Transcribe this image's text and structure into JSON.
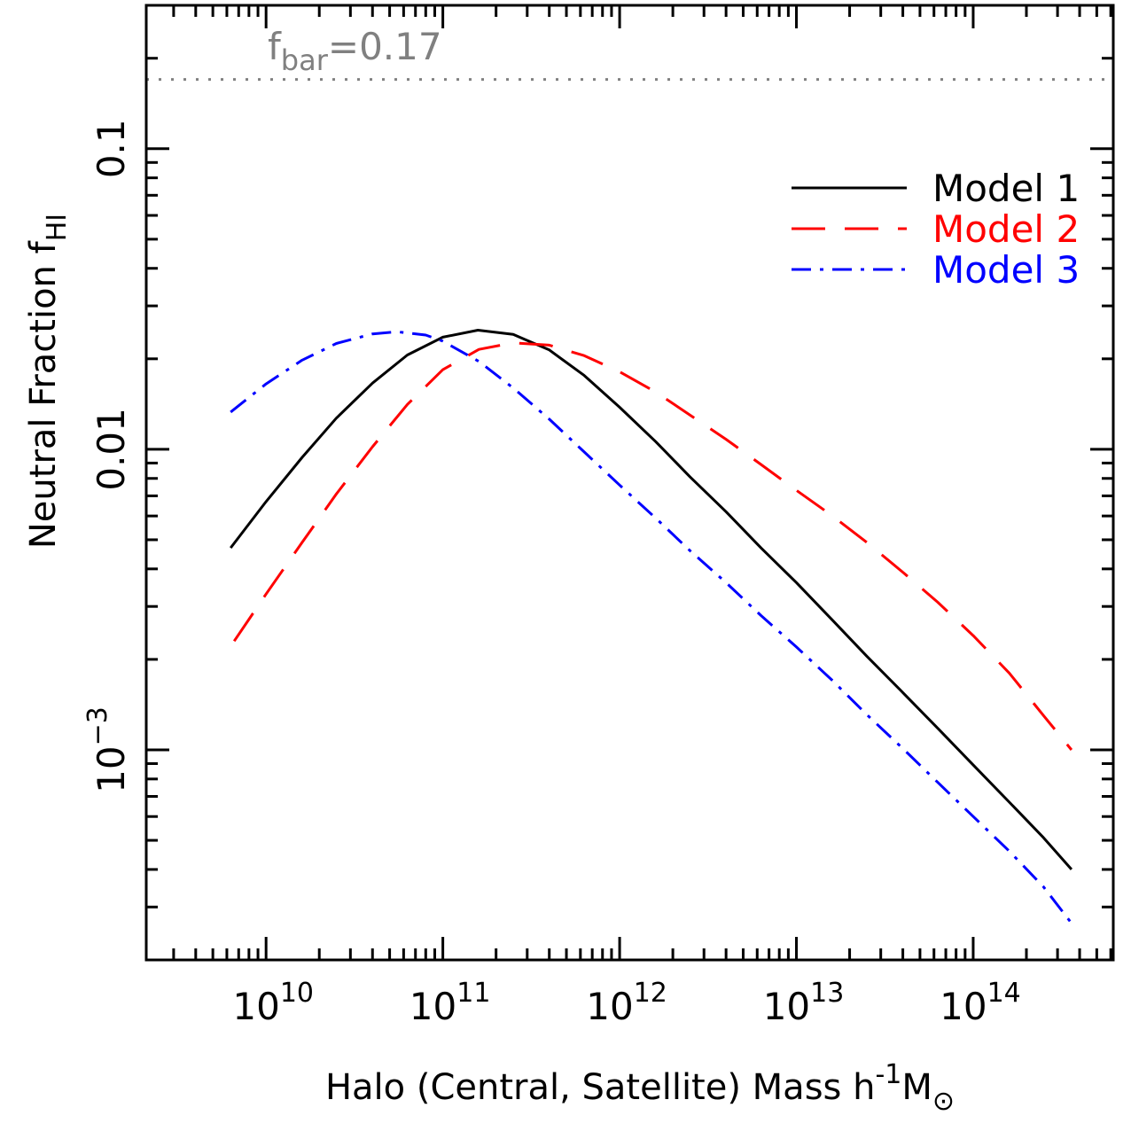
{
  "chart_data": {
    "type": "line",
    "xlabel": "Halo (Central, Satellite) Mass h",
    "xlabel_sup": "-1",
    "xlabel_unit": "M",
    "xlabel_unit_sub": "⊙",
    "ylabel": "Neutral Fraction f",
    "ylabel_sub": "HI",
    "x_scale": "log",
    "y_scale": "log",
    "xlim": [
      2100000000.0,
      620000000000000.0
    ],
    "ylim": [
      0.0002,
      0.3
    ],
    "x_ticks": [
      {
        "base": "10",
        "exp": "10",
        "value": 10000000000.0
      },
      {
        "base": "10",
        "exp": "11",
        "value": 100000000000.0
      },
      {
        "base": "10",
        "exp": "12",
        "value": 1000000000000.0
      },
      {
        "base": "10",
        "exp": "13",
        "value": 10000000000000.0
      },
      {
        "base": "10",
        "exp": "14",
        "value": 100000000000000.0
      }
    ],
    "y_ticks": [
      {
        "label": "0.1",
        "value": 0.1
      },
      {
        "label": "0.01",
        "value": 0.01
      },
      {
        "base": "10",
        "exp": "−3",
        "value": 0.001
      }
    ],
    "reference_line": {
      "value": 0.17,
      "label_main": "f",
      "label_sub": "bar",
      "label_rest": "=0.17",
      "color": "#808080"
    },
    "series": [
      {
        "name": "Model 1",
        "color": "#000000",
        "dash": "solid",
        "x": [
          6300000000.0,
          10000000000.0,
          16000000000.0,
          25000000000.0,
          40000000000.0,
          63000000000.0,
          100000000000.0,
          158000000000.0,
          250000000000.0,
          400000000000.0,
          630000000000.0,
          1000000000000.0,
          1600000000000.0,
          2500000000000.0,
          4000000000000.0,
          6300000000000.0,
          10000000000000.0,
          16000000000000.0,
          25000000000000.0,
          40000000000000.0,
          63000000000000.0,
          100000000000000.0,
          160000000000000.0,
          250000000000000.0,
          360000000000000.0
        ],
        "y": [
          0.0047,
          0.0067,
          0.0094,
          0.0127,
          0.0166,
          0.0206,
          0.0236,
          0.0249,
          0.0241,
          0.0214,
          0.0176,
          0.0138,
          0.0106,
          0.0081,
          0.0062,
          0.0047,
          0.0036,
          0.0027,
          0.00205,
          0.00155,
          0.00118,
          0.00089,
          0.00067,
          0.00051,
          0.0004
        ]
      },
      {
        "name": "Model 2",
        "color": "#ff0000",
        "dash": "long-dash",
        "x": [
          6600000000.0,
          10000000000.0,
          16000000000.0,
          25000000000.0,
          40000000000.0,
          63000000000.0,
          100000000000.0,
          160000000000.0,
          250000000000.0,
          400000000000.0,
          630000000000.0,
          1000000000000.0,
          1600000000000.0,
          2500000000000.0,
          4000000000000.0,
          6300000000000.0,
          10000000000000.0,
          16000000000000.0,
          25000000000000.0,
          40000000000000.0,
          63000000000000.0,
          100000000000000.0,
          160000000000000.0,
          250000000000000.0,
          360000000000000.0
        ],
        "y": [
          0.0023,
          0.0033,
          0.0049,
          0.0071,
          0.0102,
          0.0141,
          0.0184,
          0.0215,
          0.0226,
          0.0222,
          0.0205,
          0.0181,
          0.0155,
          0.013,
          0.0108,
          0.0089,
          0.0073,
          0.006,
          0.0049,
          0.0039,
          0.0031,
          0.0024,
          0.0018,
          0.0013,
          0.001
        ]
      },
      {
        "name": "Model 3",
        "color": "#0000ff",
        "dash": "dash-dot",
        "x": [
          6300000000.0,
          10000000000.0,
          16000000000.0,
          25000000000.0,
          40000000000.0,
          55000000000.0,
          80000000000.0,
          100000000000.0,
          160000000000.0,
          250000000000.0,
          400000000000.0,
          630000000000.0,
          1000000000000.0,
          1600000000000.0,
          2500000000000.0,
          4000000000000.0,
          6300000000000.0,
          10000000000000.0,
          16000000000000.0,
          25000000000000.0,
          40000000000000.0,
          63000000000000.0,
          100000000000000.0,
          160000000000000.0,
          250000000000000.0,
          360000000000000.0
        ],
        "y": [
          0.0133,
          0.0165,
          0.0198,
          0.0225,
          0.0242,
          0.0246,
          0.024,
          0.0229,
          0.0196,
          0.016,
          0.0126,
          0.0098,
          0.0076,
          0.0059,
          0.0046,
          0.0036,
          0.0028,
          0.0022,
          0.0017,
          0.00131,
          0.00101,
          0.00078,
          0.0006,
          0.00046,
          0.00035,
          0.000265
        ]
      }
    ],
    "legend_position": "top-right",
    "grid": false
  }
}
